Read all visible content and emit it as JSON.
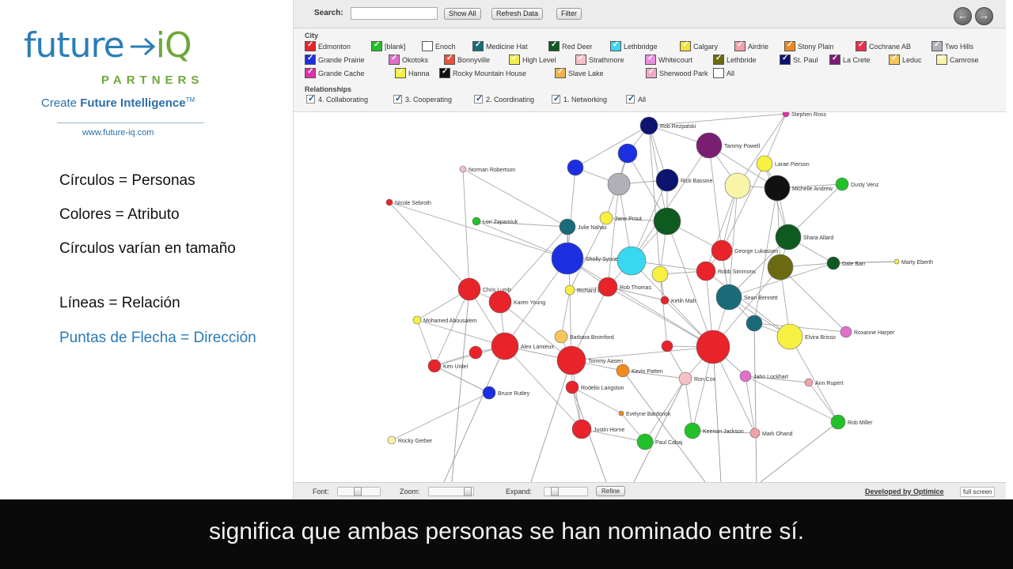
{
  "logo": {
    "word_left": "future",
    "word_right": "iQ",
    "partners": "PARTNERS",
    "tagline_plain": "Create ",
    "tagline_bold": "Future Intelligence",
    "tagline_tm": "TM",
    "url": "www.future-iq.com"
  },
  "legend": {
    "circles": "Círculos = Personas",
    "colors": "Colores = Atributo",
    "size": "Círculos varían en tamaño",
    "lines": "Líneas = Relación",
    "arrows": "Puntas de Flecha = Dirección"
  },
  "toolbar": {
    "search_label": "Search:",
    "search_value": "",
    "show_all": "Show All",
    "refresh": "Refresh Data",
    "filter": "Filter",
    "back_icon": "arrow-left-icon",
    "forward_icon": "arrow-right-icon"
  },
  "filters": {
    "city_title": "City",
    "cities": [
      {
        "label": "Edmonton",
        "color": "#e8232a"
      },
      {
        "label": "[blank]",
        "color": "#23c129"
      },
      {
        "label": "Enoch",
        "color": "#ffffff"
      },
      {
        "label": "Medicine Hat",
        "color": "#1a6b78"
      },
      {
        "label": "Red Deer",
        "color": "#0f5a20"
      },
      {
        "label": "Lethbridge",
        "color": "#38d8f0"
      },
      {
        "label": "Calgary",
        "color": "#f2e33a"
      },
      {
        "label": "Airdrie",
        "color": "#f0a0a8"
      },
      {
        "label": "Stony Plain",
        "color": "#f08a1e"
      },
      {
        "label": "Cochrane AB",
        "color": "#e8304a"
      },
      {
        "label": "Two Hills",
        "color": "#b0b0b8"
      },
      {
        "label": "Grande Prairie",
        "color": "#1c2fe0"
      },
      {
        "label": "Okotoks",
        "color": "#e070c8"
      },
      {
        "label": "Bonnyville",
        "color": "#e8523a"
      },
      {
        "label": "High Level",
        "color": "#f3ee50"
      },
      {
        "label": "Strathmore",
        "color": "#f5c0c6"
      },
      {
        "label": "Whitecourt",
        "color": "#e890e0"
      },
      {
        "label": "Lethbride",
        "color": "#6c6a10"
      },
      {
        "label": "St. Paul",
        "color": "#0c1470"
      },
      {
        "label": "La Crete",
        "color": "#7a1e74"
      },
      {
        "label": "Leduc",
        "color": "#f5c65a"
      },
      {
        "label": "Camrose",
        "color": "#f8f4a8"
      },
      {
        "label": "Grande Cache",
        "color": "#e030a8"
      },
      {
        "label": "Hanna",
        "color": "#f6f040"
      },
      {
        "label": "Rocky Mountain House",
        "color": "#111111"
      },
      {
        "label": "Slave Lake",
        "color": "#f2b24c"
      },
      {
        "label": "Sherwood Park",
        "color": "#f2a8c8"
      },
      {
        "label": "All",
        "color": "#ffffff"
      }
    ],
    "rel_title": "Relationships",
    "relationships": [
      "4. Collaborating",
      "3. Cooperating",
      "2. Coordinating",
      "1. Networking",
      "All"
    ]
  },
  "bottombar": {
    "font": "Font:",
    "zoom": "Zoom:",
    "expand": "Expand:",
    "refine": "Refine",
    "developed": "Developed by Optimice",
    "fullscreen": "full screen"
  },
  "subtitle": "significa que ambas personas se han nominado entre sí.",
  "graph_labels": [
    "Rob Rezpalski",
    "Tammy Powell",
    "Stephen Ross",
    "Larae Pierson",
    "Rick Bassine",
    "Michelle Andrew",
    "Dusty Venz",
    "Norman Robertson",
    "Nicole Sebroth",
    "Lori Zapamiuk",
    "Julie Nahas",
    "Sholly Synnett",
    "Jane Prout",
    "George Lukassen",
    "Shara Allard",
    "Dale Barr",
    "Marty Eberth",
    "Chris Lumb",
    "Karen Young",
    "Rob Thomas",
    "Richard Blair",
    "Ketih Mah",
    "Mohamed Abousalem",
    "Robb Simmons",
    "Sean Bennett",
    "Roxanne Harper",
    "Alex Lamieux",
    "Barbara Bromford",
    "Tommy Aasen",
    "Elvira Brisso",
    "Ken Urdel",
    "Kevin Patten",
    "Jahn Lockhart",
    "Ron Cox",
    "Ann Rupert",
    "Rodelio Langston",
    "Bruce Rutley",
    "Rob Miller",
    "Evelyne Bardorick",
    "Justin Horne",
    "Keenan Jackson",
    "Mark Ohand",
    "Paul Cabaj",
    "Rocky Gerber"
  ]
}
